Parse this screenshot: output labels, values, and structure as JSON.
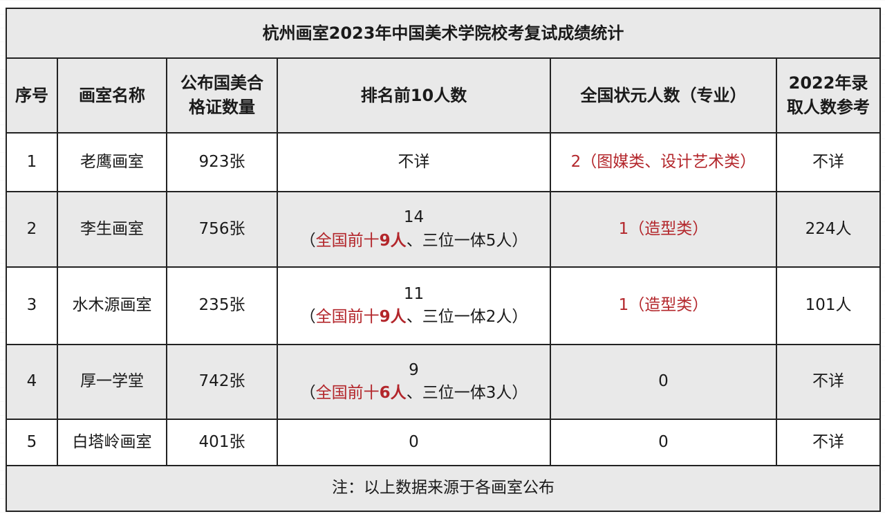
{
  "title": "杭州画室2023年中国美术学院校考复试成绩统计",
  "headers": [
    "序号",
    "画室名称",
    "公布国美合格证数量",
    "排名前10人数",
    "全国状元人数（专业）",
    "2022年录取人数参考"
  ],
  "rows": [
    {
      "no": "1",
      "name": "老鹰画室",
      "certs": "923张",
      "top10": {
        "count": "不详",
        "open": "",
        "red": "",
        "red_num": "",
        "rest": "",
        "close": ""
      },
      "champion": "2（图媒类、设计艺术类）",
      "champion_red": true,
      "admit2022": "不详"
    },
    {
      "no": "2",
      "name": "李生画室",
      "certs": "756张",
      "top10": {
        "count": "14",
        "open": "（",
        "red": "全国前十",
        "red_num": "9人",
        "rest": "、三位一体5人",
        "close": "）"
      },
      "champion": "1（造型类）",
      "champion_red": true,
      "admit2022": "224人"
    },
    {
      "no": "3",
      "name": "水木源画室",
      "certs": "235张",
      "top10": {
        "count": "11",
        "open": "（",
        "red": "全国前十",
        "red_num": "9人",
        "rest": "、三位一体2人",
        "close": "）"
      },
      "champion": "1（造型类）",
      "champion_red": true,
      "admit2022": "101人"
    },
    {
      "no": "4",
      "name": "厚一学堂",
      "certs": "742张",
      "top10": {
        "count": "9",
        "open": "（",
        "red": "全国前十",
        "red_num": "6人",
        "rest": "、三位一体3人",
        "close": "）"
      },
      "champion": "0",
      "champion_red": false,
      "admit2022": "不详"
    },
    {
      "no": "5",
      "name": "白塔岭画室",
      "certs": "401张",
      "top10": {
        "count": "0",
        "open": "",
        "red": "",
        "red_num": "",
        "rest": "",
        "close": ""
      },
      "champion": "0",
      "champion_red": false,
      "admit2022": "不详"
    }
  ],
  "note": "注：以上数据来源于各画室公布",
  "colors": {
    "accent_red": "#b3262b",
    "header_bg": "#e9e9e9",
    "border": "#222222"
  }
}
